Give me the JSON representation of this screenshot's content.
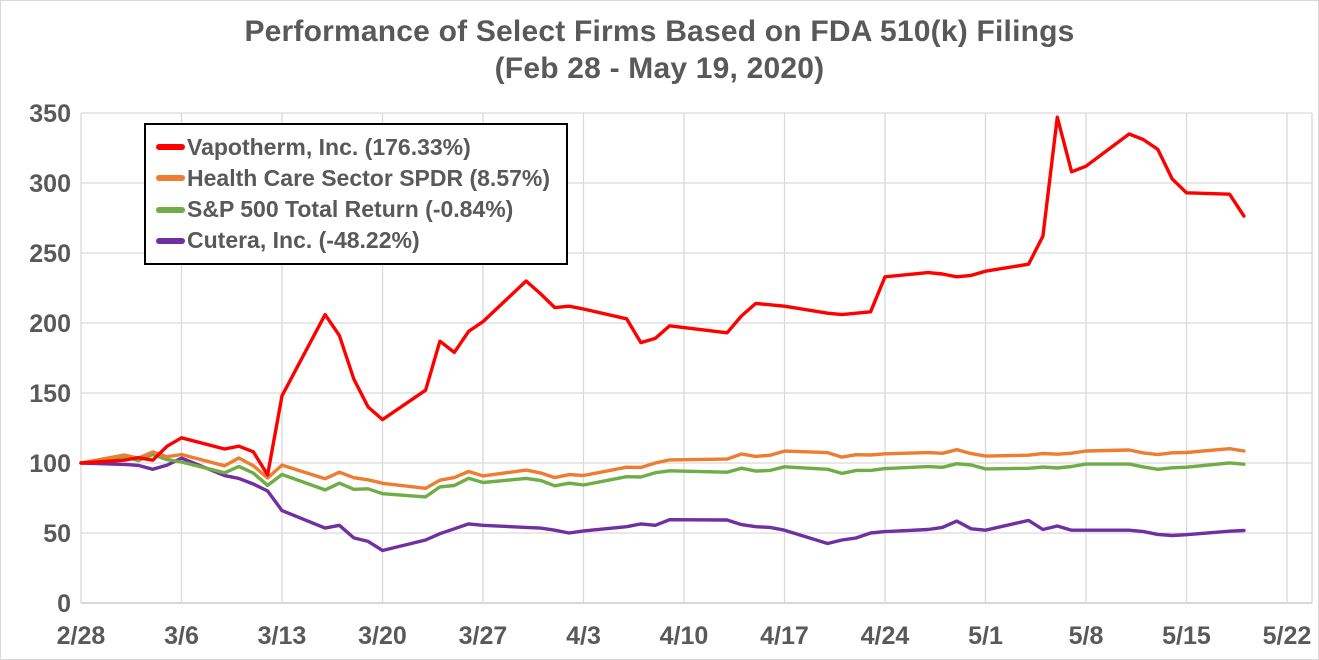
{
  "chart_data": {
    "type": "line",
    "title": "Performance of Select Firms Based on FDA 510(k) Filings",
    "subtitle": "(Feb 28 - May 19, 2020)",
    "year": 2020,
    "grid": true,
    "legend_position": "top-left",
    "x_axis": {
      "tick_labels": [
        "2/28",
        "3/6",
        "3/13",
        "3/20",
        "3/27",
        "4/3",
        "4/10",
        "4/17",
        "4/24",
        "5/1",
        "5/8",
        "5/15",
        "5/22"
      ],
      "start": "2/28",
      "end": "5/22"
    },
    "y_axis": {
      "min": 0,
      "max": 350,
      "step": 50,
      "ticks": [
        0,
        50,
        100,
        150,
        200,
        250,
        300,
        350
      ]
    },
    "dates": [
      "2/28",
      "3/2",
      "3/3",
      "3/4",
      "3/5",
      "3/6",
      "3/9",
      "3/10",
      "3/11",
      "3/12",
      "3/13",
      "3/16",
      "3/17",
      "3/18",
      "3/19",
      "3/20",
      "3/23",
      "3/24",
      "3/25",
      "3/26",
      "3/27",
      "3/30",
      "3/31",
      "4/1",
      "4/2",
      "4/3",
      "4/6",
      "4/7",
      "4/8",
      "4/9",
      "4/13",
      "4/14",
      "4/15",
      "4/16",
      "4/17",
      "4/20",
      "4/21",
      "4/22",
      "4/23",
      "4/24",
      "4/27",
      "4/28",
      "4/29",
      "4/30",
      "5/1",
      "5/4",
      "5/5",
      "5/6",
      "5/7",
      "5/8",
      "5/11",
      "5/12",
      "5/13",
      "5/14",
      "5/15",
      "5/18",
      "5/19"
    ],
    "series": [
      {
        "name": "Vapotherm, Inc. (176.33%)",
        "color": "#FF0000",
        "values": [
          100,
          102,
          103.8,
          102,
          112,
          118,
          110,
          112,
          108,
          91.5,
          148,
          206,
          191,
          160,
          140,
          131,
          152,
          187,
          179,
          194,
          201,
          230,
          221,
          211,
          212,
          210,
          203,
          186,
          189,
          198,
          193,
          205,
          214,
          213,
          212,
          207,
          206,
          207,
          208,
          233,
          236,
          235,
          233,
          234,
          237,
          242,
          262,
          347,
          308,
          312,
          335,
          331,
          324,
          303,
          293,
          292,
          276.33
        ]
      },
      {
        "name": "Health Care Sector SPDR (8.57%)",
        "color": "#ED7D31",
        "values": [
          100,
          105.7,
          103.5,
          107.9,
          104.5,
          106.1,
          98,
          103.6,
          98.1,
          89.3,
          98.5,
          88.8,
          93.4,
          89.5,
          88,
          85.5,
          81.9,
          87.7,
          89.6,
          93.9,
          90.8,
          94.9,
          92.9,
          89.6,
          91.7,
          91.1,
          97,
          96.8,
          100,
          102.2,
          102.8,
          106.4,
          104.7,
          105.6,
          108.5,
          107.4,
          104.2,
          105.9,
          105.7,
          106.6,
          107.4,
          106.9,
          109.5,
          106.7,
          104.9,
          105.6,
          106.8,
          106.3,
          107,
          108.6,
          109.3,
          107.2,
          106,
          107.3,
          107.5,
          110.2,
          108.57
        ]
      },
      {
        "name": "S&P 500 Total Return (-0.84%)",
        "color": "#70AD47",
        "values": [
          100,
          104.6,
          101.7,
          106,
          102.4,
          100.7,
          93,
          97.6,
          92.8,
          84,
          91.8,
          80.8,
          85.6,
          81.2,
          81.6,
          78.1,
          75.8,
          82.9,
          83.9,
          89.1,
          86.1,
          89,
          87.6,
          83.7,
          85.6,
          84.3,
          90.2,
          90,
          93.1,
          94.4,
          93.4,
          96.3,
          94.2,
          94.7,
          97.3,
          95.5,
          92.6,
          94.7,
          94.7,
          96,
          97.4,
          96.9,
          99.5,
          98.6,
          95.8,
          96.2,
          97.1,
          96.4,
          97.5,
          99.2,
          99.2,
          97.2,
          95.5,
          96.6,
          97,
          100.1,
          99.16
        ]
      },
      {
        "name": "Cutera, Inc. (-48.22%)",
        "color": "#7030A0",
        "values": [
          100,
          99,
          98.3,
          95.5,
          98.5,
          103.5,
          91,
          89,
          85,
          80,
          66,
          53.5,
          55.5,
          46.5,
          44,
          37.5,
          45,
          49.5,
          53,
          56.5,
          55.5,
          54,
          53.5,
          52,
          50,
          51.5,
          54.5,
          56.5,
          55.5,
          59.5,
          59.3,
          56,
          54.5,
          54,
          52,
          42.5,
          45,
          46.5,
          50,
          51,
          52.5,
          54,
          58.5,
          53,
          52,
          59,
          52.5,
          55,
          52,
          52,
          52,
          51,
          49,
          48.2,
          48.8,
          51.3,
          51.78
        ]
      }
    ]
  },
  "styles": {
    "background": "#FFFFFF",
    "canvas_border": "#D9D9D9",
    "title_color": "#595959",
    "axis_label_color": "#595959",
    "gridline_color": "#D9D9D9",
    "axis_line_color": "#BFBFBF",
    "legend_border_color": "#000000"
  }
}
